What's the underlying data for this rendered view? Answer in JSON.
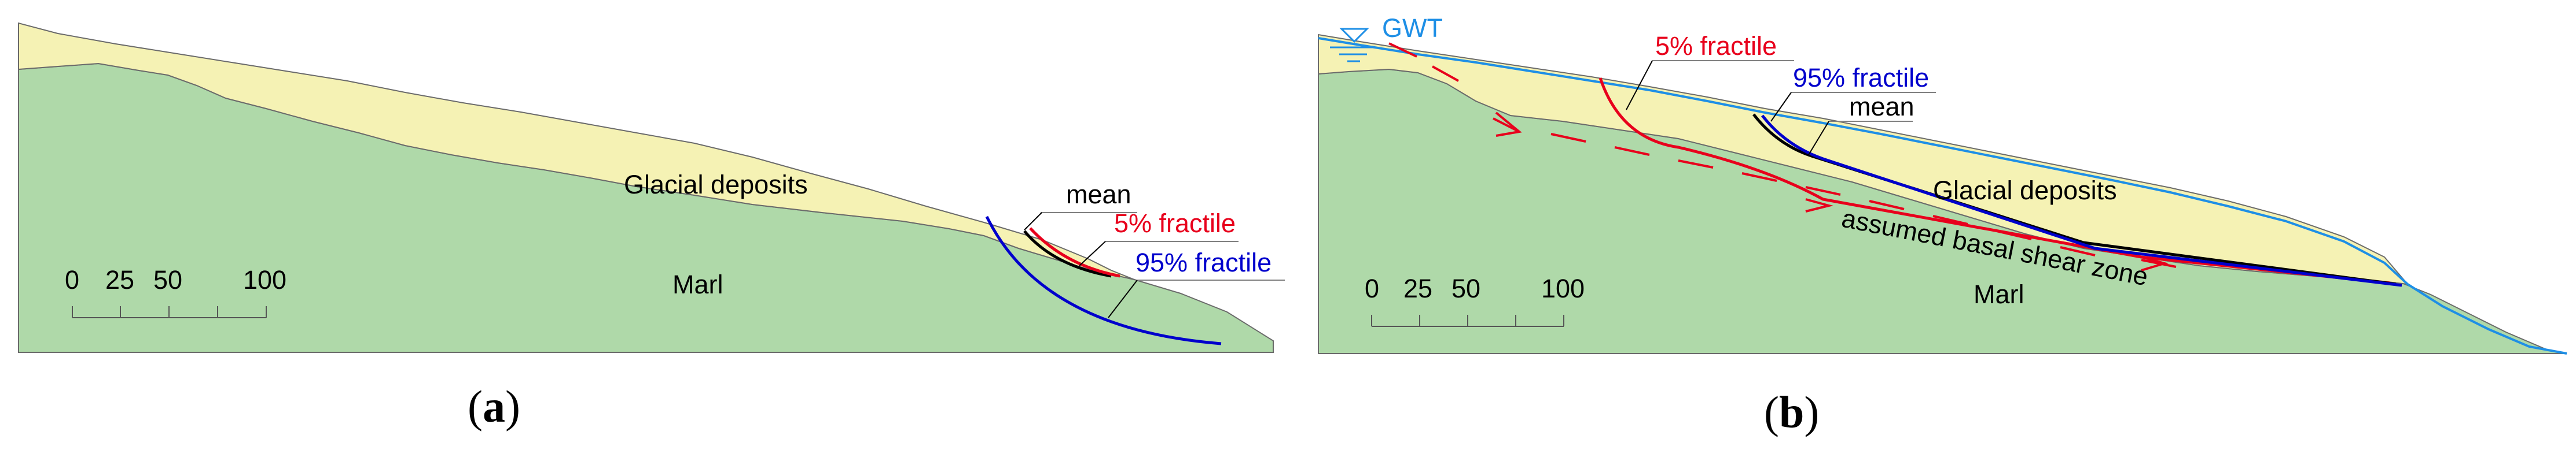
{
  "panel_a": {
    "caption_open": "(",
    "caption_letter": "a",
    "caption_close": ")",
    "layers": {
      "upper": "Glacial deposits",
      "lower": "Marl"
    },
    "curves": {
      "mean": "mean",
      "p5": "5% fractile",
      "p95": "95% fractile"
    },
    "scale": [
      "0",
      "25",
      "50",
      "100"
    ]
  },
  "panel_b": {
    "caption_open": "(",
    "caption_letter": "b",
    "caption_close": ")",
    "water_table": "GWT",
    "layers": {
      "upper": "Glacial deposits",
      "lower": "Marl"
    },
    "curves": {
      "p5": "5% fractile",
      "p95": "95% fractile",
      "mean": "mean"
    },
    "shear_zone": "assumed basal shear zone",
    "scale": [
      "0",
      "25",
      "50",
      "100"
    ]
  },
  "colors": {
    "glacial": "#f5f2b4",
    "marl": "#afd9a9",
    "outline": "#6b6b6b",
    "mean": "#000000",
    "p5": "#e8001c",
    "p95": "#0000cc",
    "gwt": "#1e8fe6"
  }
}
